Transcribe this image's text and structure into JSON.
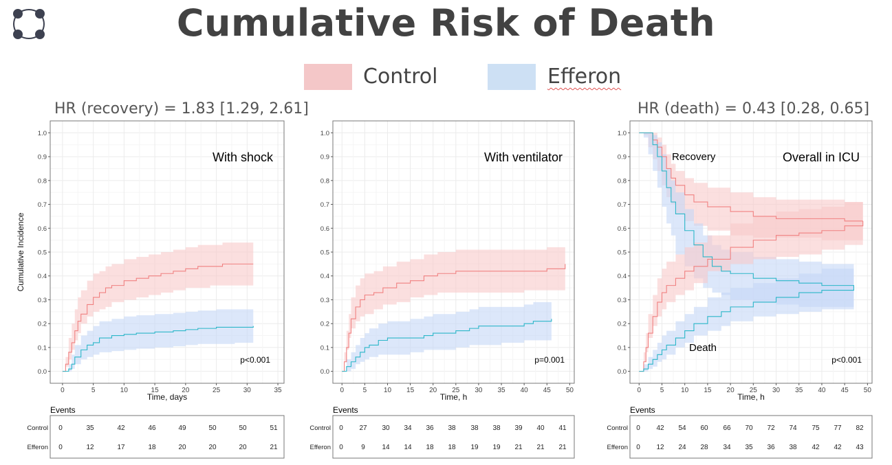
{
  "title": "Cumulative Risk of Death",
  "legend": [
    {
      "label": "Control",
      "color": "#f4c7c8"
    },
    {
      "label": "Efferon",
      "color": "#cde0f4"
    }
  ],
  "colors": {
    "control_line": "#f08080",
    "control_band": "#f8c9c9",
    "efferon_line": "#2ab6c8",
    "efferon_band": "#c5d7f6",
    "grid": "#ececec"
  },
  "y_axis_label": "Cumulative Incidence",
  "events_title": "Events",
  "panels": [
    {
      "hr_label": "HR (recovery) = 1.83 [1.29, 2.61]",
      "annotation": "With shock",
      "pvalue": "p<0.001",
      "xlabel": "Time, days",
      "xticks": [
        0,
        5,
        10,
        15,
        20,
        25,
        30,
        35
      ],
      "events": {
        "Control": [
          "0",
          "35",
          "42",
          "46",
          "49",
          "50",
          "50",
          "51"
        ],
        "Efferon": [
          "0",
          "12",
          "17",
          "18",
          "20",
          "20",
          "20",
          "21"
        ]
      }
    },
    {
      "hr_label": "",
      "annotation": "With ventilator",
      "pvalue": "p=0.001",
      "xlabel": "Time, h",
      "xticks": [
        0,
        5,
        10,
        15,
        20,
        25,
        30,
        35,
        40,
        45,
        50
      ],
      "events": {
        "Control": [
          "0",
          "27",
          "30",
          "34",
          "36",
          "38",
          "38",
          "38",
          "39",
          "40",
          "41"
        ],
        "Efferon": [
          "0",
          "9",
          "14",
          "14",
          "18",
          "18",
          "19",
          "19",
          "21",
          "21",
          "21"
        ]
      }
    },
    {
      "hr_label": "HR (death) = 0.43 [0.28, 0.65]",
      "annotation": "Overall in ICU",
      "pvalue": "p<0.001",
      "xlabel": "Time, h",
      "xticks": [
        0,
        5,
        10,
        15,
        20,
        25,
        30,
        35,
        40,
        45,
        50
      ],
      "curve_labels": [
        "Recovery",
        "Death"
      ],
      "events": {
        "Control": [
          "0",
          "42",
          "54",
          "60",
          "66",
          "70",
          "72",
          "74",
          "75",
          "77",
          "82"
        ],
        "Efferon": [
          "0",
          "12",
          "24",
          "28",
          "34",
          "35",
          "36",
          "38",
          "42",
          "42",
          "43"
        ]
      }
    }
  ],
  "chart_data": [
    {
      "type": "line",
      "title": "With shock",
      "xlabel": "Time, days",
      "ylabel": "Cumulative Incidence",
      "xlim": [
        -2,
        36
      ],
      "ylim": [
        -0.05,
        1.05
      ],
      "yticks": [
        0.0,
        0.1,
        0.2,
        0.3,
        0.4,
        0.5,
        0.6,
        0.7,
        0.8,
        0.9,
        1.0
      ],
      "series": [
        {
          "name": "Control",
          "x": [
            0,
            0.5,
            1,
            1.5,
            2,
            2.5,
            3,
            4,
            5,
            6,
            7,
            8,
            10,
            12,
            14,
            16,
            18,
            20,
            22,
            24,
            26,
            28,
            31
          ],
          "y": [
            0,
            0.03,
            0.08,
            0.12,
            0.17,
            0.21,
            0.24,
            0.28,
            0.31,
            0.33,
            0.35,
            0.36,
            0.38,
            0.39,
            0.4,
            0.41,
            0.42,
            0.43,
            0.44,
            0.44,
            0.45,
            0.45,
            0.45
          ],
          "lower": [
            0,
            0,
            0.02,
            0.05,
            0.09,
            0.13,
            0.16,
            0.2,
            0.23,
            0.25,
            0.26,
            0.27,
            0.29,
            0.3,
            0.31,
            0.32,
            0.33,
            0.34,
            0.35,
            0.35,
            0.36,
            0.36,
            0.36
          ],
          "upper": [
            0,
            0.06,
            0.14,
            0.2,
            0.26,
            0.31,
            0.34,
            0.38,
            0.41,
            0.42,
            0.44,
            0.45,
            0.47,
            0.48,
            0.49,
            0.5,
            0.51,
            0.52,
            0.53,
            0.53,
            0.54,
            0.54,
            0.54
          ]
        },
        {
          "name": "Efferon",
          "x": [
            0,
            1,
            1.5,
            2,
            3,
            4,
            5,
            6,
            8,
            10,
            12,
            15,
            18,
            20,
            22,
            25,
            28,
            31
          ],
          "y": [
            0,
            0.01,
            0.03,
            0.06,
            0.09,
            0.11,
            0.12,
            0.14,
            0.15,
            0.155,
            0.16,
            0.165,
            0.17,
            0.175,
            0.18,
            0.185,
            0.185,
            0.19
          ],
          "lower": [
            0,
            0,
            0,
            0.01,
            0.03,
            0.05,
            0.06,
            0.07,
            0.08,
            0.085,
            0.09,
            0.095,
            0.1,
            0.105,
            0.11,
            0.115,
            0.115,
            0.12
          ],
          "upper": [
            0,
            0.03,
            0.07,
            0.11,
            0.15,
            0.17,
            0.19,
            0.21,
            0.22,
            0.23,
            0.235,
            0.24,
            0.245,
            0.25,
            0.255,
            0.26,
            0.26,
            0.265
          ]
        }
      ],
      "annotations": [
        "With shock",
        "p<0.001"
      ]
    },
    {
      "type": "line",
      "title": "With ventilator",
      "xlabel": "Time, h",
      "ylabel": "Cumulative Incidence",
      "xlim": [
        -2,
        51
      ],
      "ylim": [
        -0.05,
        1.05
      ],
      "yticks": [
        0.0,
        0.1,
        0.2,
        0.3,
        0.4,
        0.5,
        0.6,
        0.7,
        0.8,
        0.9,
        1.0
      ],
      "series": [
        {
          "name": "Control",
          "x": [
            0,
            0.5,
            1,
            1.5,
            2,
            3,
            4,
            5,
            7,
            9,
            12,
            15,
            18,
            21,
            25,
            30,
            35,
            40,
            45,
            49
          ],
          "y": [
            0,
            0.04,
            0.1,
            0.16,
            0.22,
            0.27,
            0.3,
            0.32,
            0.33,
            0.35,
            0.37,
            0.38,
            0.4,
            0.41,
            0.42,
            0.42,
            0.42,
            0.42,
            0.43,
            0.45
          ],
          "lower": [
            0,
            0,
            0.04,
            0.09,
            0.14,
            0.18,
            0.21,
            0.23,
            0.24,
            0.26,
            0.28,
            0.29,
            0.31,
            0.32,
            0.33,
            0.33,
            0.33,
            0.33,
            0.34,
            0.34
          ],
          "upper": [
            0,
            0.08,
            0.17,
            0.24,
            0.31,
            0.36,
            0.39,
            0.41,
            0.42,
            0.44,
            0.46,
            0.47,
            0.49,
            0.5,
            0.51,
            0.51,
            0.51,
            0.51,
            0.52,
            0.54
          ]
        },
        {
          "name": "Efferon",
          "x": [
            0,
            1,
            2,
            3,
            4,
            5,
            6,
            8,
            10,
            15,
            18,
            20,
            25,
            28,
            30,
            35,
            40,
            42,
            46
          ],
          "y": [
            0,
            0.02,
            0.04,
            0.06,
            0.08,
            0.1,
            0.11,
            0.13,
            0.14,
            0.14,
            0.15,
            0.16,
            0.17,
            0.18,
            0.19,
            0.19,
            0.2,
            0.21,
            0.22
          ],
          "lower": [
            0,
            0,
            0,
            0.01,
            0.03,
            0.04,
            0.05,
            0.06,
            0.07,
            0.07,
            0.08,
            0.09,
            0.09,
            0.1,
            0.11,
            0.11,
            0.12,
            0.13,
            0.13
          ],
          "upper": [
            0,
            0.05,
            0.08,
            0.11,
            0.14,
            0.16,
            0.18,
            0.2,
            0.21,
            0.22,
            0.23,
            0.24,
            0.25,
            0.26,
            0.27,
            0.27,
            0.28,
            0.29,
            0.3
          ]
        }
      ],
      "annotations": [
        "With ventilator",
        "p=0.001"
      ]
    },
    {
      "type": "line",
      "title": "Overall in ICU",
      "xlabel": "Time, h",
      "ylabel": "Cumulative Incidence",
      "xlim": [
        -2,
        51
      ],
      "ylim": [
        -0.05,
        1.05
      ],
      "yticks": [
        0.0,
        0.1,
        0.2,
        0.3,
        0.4,
        0.5,
        0.6,
        0.7,
        0.8,
        0.9,
        1.0
      ],
      "series": [
        {
          "name": "Control",
          "group": "Recovery",
          "x": [
            0,
            1,
            2,
            3,
            4,
            5,
            6,
            7,
            8,
            10,
            12,
            15,
            20,
            25,
            30,
            35,
            40,
            45,
            49
          ],
          "y": [
            1.0,
            1.0,
            1.0,
            0.97,
            0.94,
            0.9,
            0.85,
            0.81,
            0.78,
            0.74,
            0.71,
            0.69,
            0.67,
            0.65,
            0.64,
            0.64,
            0.64,
            0.63,
            0.63
          ],
          "lower": [
            1.0,
            1.0,
            0.99,
            0.94,
            0.89,
            0.84,
            0.78,
            0.73,
            0.7,
            0.66,
            0.63,
            0.61,
            0.59,
            0.57,
            0.56,
            0.56,
            0.56,
            0.55,
            0.55
          ],
          "upper": [
            1.0,
            1.0,
            1.0,
            1.0,
            0.98,
            0.95,
            0.91,
            0.87,
            0.84,
            0.81,
            0.79,
            0.77,
            0.75,
            0.73,
            0.72,
            0.72,
            0.72,
            0.71,
            0.71
          ]
        },
        {
          "name": "Efferon",
          "group": "Recovery",
          "x": [
            0,
            1,
            2,
            3,
            4,
            5,
            6,
            7,
            8,
            10,
            12,
            14,
            16,
            18,
            20,
            25,
            30,
            35,
            40,
            47
          ],
          "y": [
            1.0,
            1.0,
            1.0,
            0.95,
            0.9,
            0.84,
            0.77,
            0.71,
            0.66,
            0.59,
            0.53,
            0.48,
            0.44,
            0.42,
            0.41,
            0.39,
            0.38,
            0.37,
            0.36,
            0.35
          ],
          "lower": [
            1.0,
            1.0,
            0.98,
            0.91,
            0.84,
            0.77,
            0.69,
            0.62,
            0.57,
            0.49,
            0.44,
            0.39,
            0.35,
            0.33,
            0.32,
            0.3,
            0.29,
            0.28,
            0.27,
            0.27
          ],
          "upper": [
            1.0,
            1.0,
            1.0,
            0.99,
            0.96,
            0.91,
            0.85,
            0.8,
            0.75,
            0.68,
            0.62,
            0.57,
            0.53,
            0.51,
            0.5,
            0.48,
            0.47,
            0.46,
            0.45,
            0.44
          ]
        },
        {
          "name": "Control",
          "group": "Death",
          "x": [
            0,
            1,
            1.5,
            2,
            3,
            4,
            5,
            6,
            8,
            10,
            12,
            15,
            20,
            25,
            30,
            35,
            40,
            45,
            49
          ],
          "y": [
            0,
            0.04,
            0.1,
            0.16,
            0.23,
            0.29,
            0.33,
            0.36,
            0.39,
            0.42,
            0.44,
            0.47,
            0.52,
            0.55,
            0.57,
            0.58,
            0.59,
            0.61,
            0.63
          ],
          "lower": [
            0,
            0,
            0.04,
            0.08,
            0.14,
            0.19,
            0.23,
            0.26,
            0.29,
            0.32,
            0.34,
            0.37,
            0.42,
            0.45,
            0.47,
            0.48,
            0.49,
            0.51,
            0.53
          ],
          "upper": [
            0,
            0.08,
            0.16,
            0.24,
            0.32,
            0.39,
            0.43,
            0.46,
            0.49,
            0.52,
            0.54,
            0.57,
            0.62,
            0.65,
            0.67,
            0.68,
            0.69,
            0.71,
            0.72
          ]
        },
        {
          "name": "Efferon",
          "group": "Death",
          "x": [
            0,
            1,
            2,
            3,
            4,
            5,
            6,
            8,
            10,
            12,
            15,
            18,
            20,
            25,
            30,
            35,
            40,
            47
          ],
          "y": [
            0,
            0.01,
            0.03,
            0.05,
            0.07,
            0.09,
            0.11,
            0.14,
            0.17,
            0.2,
            0.23,
            0.25,
            0.27,
            0.29,
            0.31,
            0.33,
            0.34,
            0.35
          ],
          "lower": [
            0,
            0,
            0,
            0.01,
            0.02,
            0.04,
            0.05,
            0.07,
            0.1,
            0.12,
            0.15,
            0.17,
            0.19,
            0.21,
            0.23,
            0.24,
            0.25,
            0.26
          ],
          "upper": [
            0,
            0.03,
            0.06,
            0.09,
            0.12,
            0.15,
            0.17,
            0.21,
            0.24,
            0.27,
            0.31,
            0.33,
            0.35,
            0.37,
            0.39,
            0.41,
            0.43,
            0.44
          ]
        }
      ],
      "annotations": [
        "Recovery",
        "Death",
        "Overall in ICU",
        "p<0.001"
      ]
    }
  ]
}
